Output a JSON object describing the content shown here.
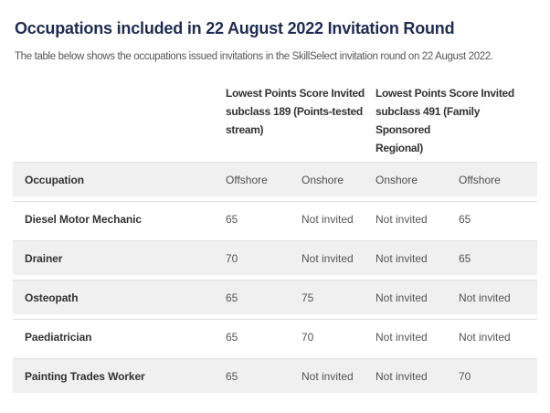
{
  "page": {
    "title": "Occupations included in 22 August 2022 Invitation Round",
    "subtitle": "The table below shows the occupations issued invitations in the SkillSelect invitation round on 22 August 2022."
  },
  "table": {
    "group_headers": [
      {
        "label": "Lowest Points Score Invited\nsubclass 189 (Points-tested\nstream)"
      },
      {
        "label": "Lowest Points Score Invited\nsubclass 491 (Family Sponsored\nRegional)"
      }
    ],
    "columns": [
      "Occupation",
      "Offshore",
      "Onshore",
      "Onshore",
      "Offshore"
    ],
    "rows": [
      {
        "occupation": "Diesel Motor Mechanic",
        "values": [
          "65",
          "Not invited",
          "Not invited",
          "65"
        ],
        "shaded": false
      },
      {
        "occupation": "Drainer",
        "values": [
          "70",
          "Not invited",
          "Not invited",
          "65"
        ],
        "shaded": true
      },
      {
        "occupation": "Osteopath",
        "values": [
          "65",
          "75",
          "Not invited",
          "Not invited"
        ],
        "shaded": true
      },
      {
        "occupation": "Paediatrician",
        "values": [
          "65",
          "70",
          "Not invited",
          "Not invited"
        ],
        "shaded": false
      },
      {
        "occupation": "Painting Trades Worker",
        "values": [
          "65",
          "Not invited",
          "Not invited",
          "70"
        ],
        "shaded": true
      }
    ]
  },
  "colors": {
    "title-color": "#1e2c52",
    "subtitle-color": "#565656",
    "header-text": "#333333",
    "muted-text": "#555555",
    "shaded-row": "#f0f0f0",
    "row-border": "#e1e1e1"
  }
}
